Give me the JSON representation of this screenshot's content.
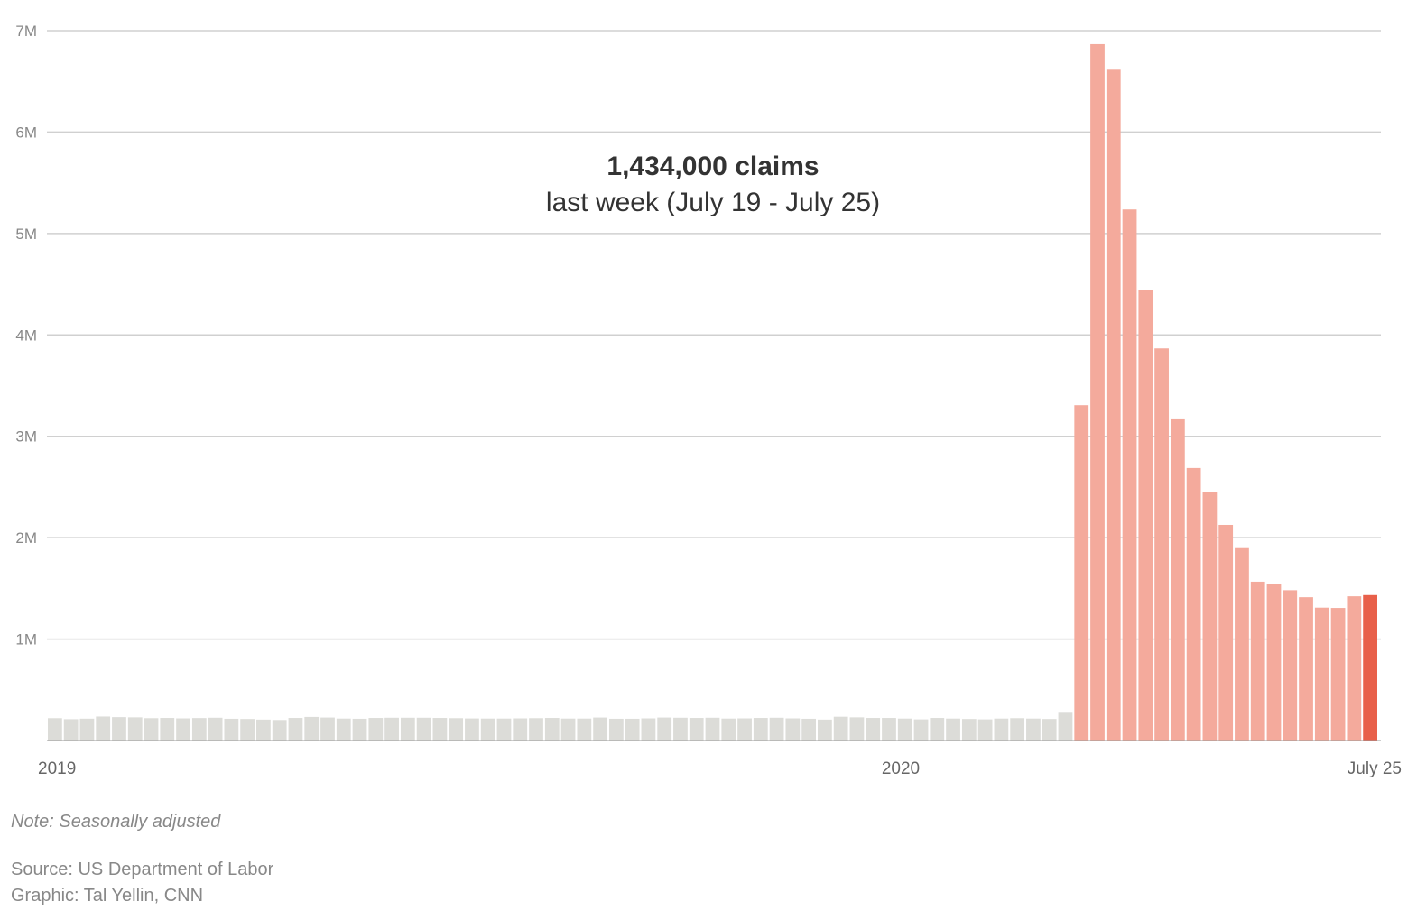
{
  "chart_data": {
    "type": "bar",
    "annotation": {
      "value_text": "1,434,000 claims",
      "period_text": "last week (July 19 - July 25)"
    },
    "y_ticks": [
      "1M",
      "2M",
      "3M",
      "4M",
      "5M",
      "6M",
      "7M"
    ],
    "ylim": [
      0,
      7000000
    ],
    "x_ticks": [
      "2019",
      "2020",
      "July 25"
    ],
    "grid": true,
    "colors": {
      "baseline": "#dcdcd8",
      "surge": "#f4aa9c",
      "latest": "#e8604a"
    },
    "series": [
      {
        "values": [
          220000,
          210000,
          215000,
          236000,
          230000,
          228000,
          220000,
          222000,
          218000,
          221000,
          224000,
          214000,
          212000,
          206000,
          202000,
          222000,
          232000,
          226000,
          216000,
          214000,
          222000,
          224000,
          224000,
          224000,
          222000,
          220000,
          217000,
          216000,
          216000,
          218000,
          220000,
          222000,
          216000,
          216000,
          226000,
          214000,
          214000,
          218000,
          226000,
          224000,
          222000,
          224000,
          216000,
          218000,
          222000,
          224000,
          218000,
          214000,
          206000,
          234000,
          228000,
          222000,
          222000,
          216000,
          208000,
          222000,
          216000,
          212000,
          208000,
          216000,
          220000,
          216000,
          212000,
          282000,
          3307000,
          6867000,
          6615000,
          5237000,
          4442000,
          3867000,
          3176000,
          2687000,
          2446000,
          2126000,
          1897000,
          1566000,
          1540000,
          1482000,
          1413000,
          1310000,
          1307000,
          1422000,
          1434000
        ],
        "categories_note": ""
      }
    ]
  },
  "footer": {
    "note": "Note: Seasonally adjusted",
    "source": "Source: US Department of Labor",
    "credit": "Graphic: Tal Yellin, CNN"
  }
}
